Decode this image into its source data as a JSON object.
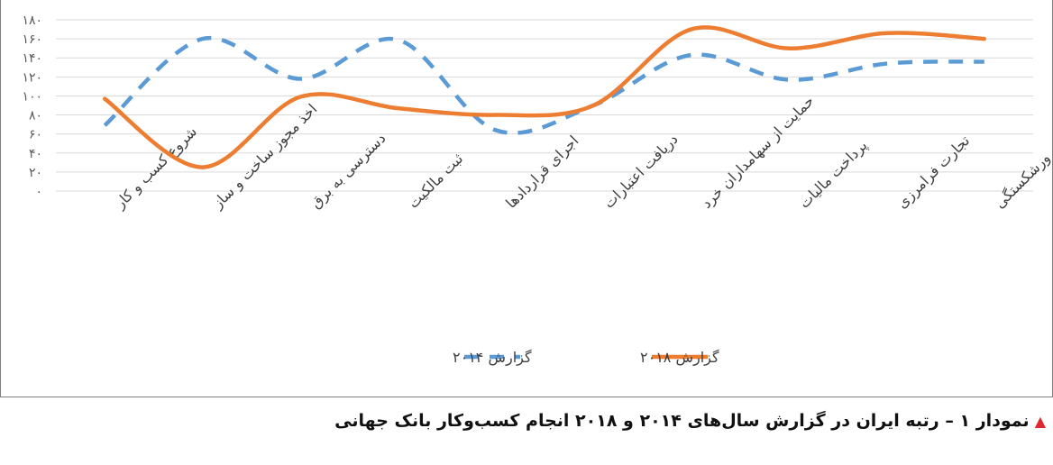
{
  "chart_data": {
    "type": "line",
    "categories": [
      "شروع کسب و کار",
      "اخذ مجوز ساخت و ساز",
      "دسترسی به برق",
      "ثبت مالکیت",
      "اجرای قراردادها",
      "دریافت اعتبارات",
      "حمایت از سهامداران خرد",
      "پرداخت مالیات",
      "تجارت فرامرزی",
      "ورشکستگی"
    ],
    "series": [
      {
        "name": "گزارش ۲۰۱۴",
        "values": [
          69,
          160,
          118,
          159,
          64,
          90,
          143,
          117,
          134,
          136
        ],
        "color": "#5b9bd5",
        "style": "dashed"
      },
      {
        "name": "گزارش ۲۰۱۸",
        "values": [
          97,
          25,
          99,
          87,
          80,
          90,
          170,
          150,
          166,
          160
        ],
        "color": "#ed7d31",
        "style": "solid"
      }
    ],
    "yticks": [
      "۰",
      "۲۰",
      "۴۰",
      "۶۰",
      "۸۰",
      "۱۰۰",
      "۱۲۰",
      "۱۴۰",
      "۱۶۰",
      "۱۸۰"
    ],
    "ylim": [
      0,
      180
    ],
    "grid": true,
    "legend": "bottom"
  },
  "caption": {
    "icon": "red-triangle-icon",
    "text": "نمودار ۱ – رتبه ایران در گزارش سال‌های ۲۰۱۴ و ۲۰۱۸ انجام کسب‌وکار بانک جهانی"
  }
}
